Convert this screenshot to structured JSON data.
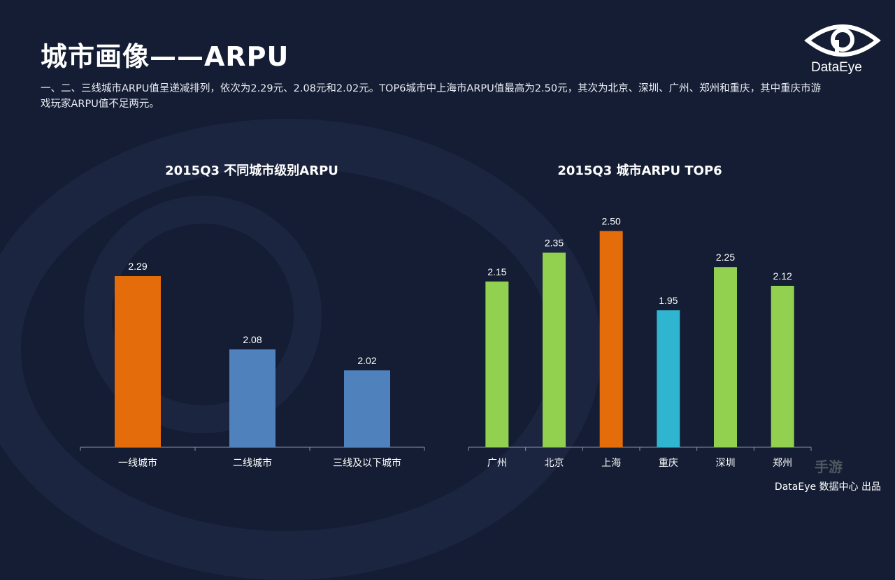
{
  "page": {
    "title": "城市画像——ARPU",
    "description": "一、二、三线城市ARPU值呈递减排列，依次为2.29元、2.08元和2.02元。TOP6城市中上海市ARPU值最高为2.50元，其次为北京、深圳、广州、郑州和重庆，其中重庆市游戏玩家ARPU值不足两元。",
    "logo_text": "DataEye",
    "footer": "DataEye 数据中心 出品",
    "watermark": "手游"
  },
  "colors": {
    "background": "#141d33",
    "orange": "#e46c0a",
    "blue": "#4f81bd",
    "green": "#92d050",
    "cyan": "#2fb5cf",
    "axis": "#8a93a8"
  },
  "chart_data": [
    {
      "type": "bar",
      "title": "2015Q3  不同城市级别ARPU",
      "categories": [
        "一线城市",
        "二线城市",
        "三线及以下城市"
      ],
      "values": [
        2.29,
        2.08,
        2.02
      ],
      "colors": [
        "#e46c0a",
        "#4f81bd",
        "#4f81bd"
      ],
      "data_labels": [
        "2.29",
        "2.08",
        "2.02"
      ],
      "ylim": [
        1.8,
        2.4
      ],
      "grid": false,
      "legend": "none"
    },
    {
      "type": "bar",
      "title": "2015Q3  城市ARPU TOP6",
      "categories": [
        "广州",
        "北京",
        "上海",
        "重庆",
        "深圳",
        "郑州"
      ],
      "values": [
        2.15,
        2.35,
        2.5,
        1.95,
        2.25,
        2.12
      ],
      "colors": [
        "#92d050",
        "#92d050",
        "#e46c0a",
        "#2fb5cf",
        "#92d050",
        "#92d050"
      ],
      "data_labels": [
        "2.15",
        "2.35",
        "2.50",
        "1.95",
        "2.25",
        "2.12"
      ],
      "ylim": [
        1.0,
        2.6
      ],
      "grid": false,
      "legend": "none"
    }
  ]
}
